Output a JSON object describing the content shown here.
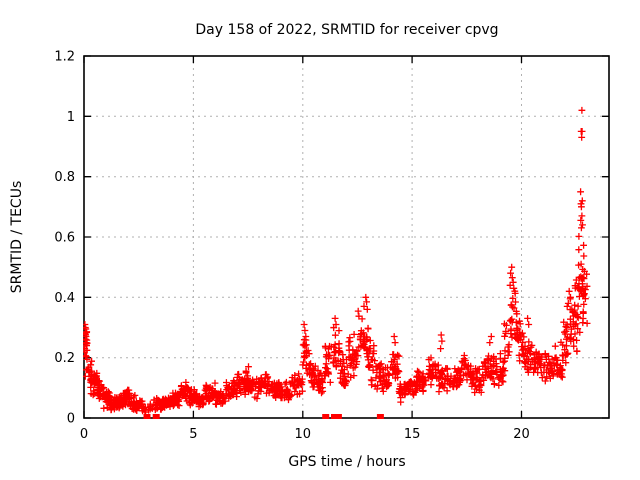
{
  "chart_data": {
    "type": "scatter",
    "title": "Day 158 of 2022, SRMTID for receiver cpvg",
    "xlabel": "GPS time / hours",
    "ylabel": "SRMTID / TECUs",
    "series_name": "SRMTID",
    "marker": "plus-cross",
    "marker_color": "#ff0000",
    "grid": true,
    "grid_color": "#b0b0b0",
    "border_color": "#000000",
    "xlim": [
      0,
      24
    ],
    "ylim": [
      0,
      1.2
    ],
    "xticks": [
      0,
      5,
      10,
      15,
      20
    ],
    "xtick_labels": [
      "0",
      "5",
      "10",
      "15",
      "20"
    ],
    "yticks": [
      0,
      0.2,
      0.4,
      0.6,
      0.8,
      1,
      1.2
    ],
    "ytick_labels": [
      "0",
      "0.2",
      "0.4",
      "0.6",
      "0.8",
      "1",
      "1.2"
    ],
    "envelope_bins": [
      [
        0.0,
        0.15,
        0.2,
        0.31,
        12
      ],
      [
        0.05,
        0.35,
        0.11,
        0.22,
        16
      ],
      [
        0.3,
        0.6,
        0.07,
        0.17,
        24
      ],
      [
        0.6,
        0.9,
        0.05,
        0.13,
        26
      ],
      [
        0.9,
        1.2,
        0.03,
        0.1,
        28
      ],
      [
        1.2,
        1.5,
        0.02,
        0.08,
        28
      ],
      [
        1.5,
        1.8,
        0.03,
        0.09,
        28
      ],
      [
        1.8,
        2.1,
        0.04,
        0.11,
        26
      ],
      [
        2.1,
        2.4,
        0.02,
        0.08,
        26
      ],
      [
        2.4,
        2.7,
        0.02,
        0.06,
        16
      ],
      [
        2.7,
        3.15,
        0.01,
        0.05,
        12
      ],
      [
        3.15,
        3.6,
        0.02,
        0.07,
        28
      ],
      [
        3.6,
        4.0,
        0.03,
        0.08,
        30
      ],
      [
        4.0,
        4.4,
        0.03,
        0.09,
        30
      ],
      [
        4.4,
        4.8,
        0.05,
        0.13,
        30
      ],
      [
        4.8,
        5.1,
        0.04,
        0.1,
        24
      ],
      [
        5.1,
        5.5,
        0.03,
        0.09,
        28
      ],
      [
        5.5,
        6.0,
        0.05,
        0.12,
        32
      ],
      [
        6.0,
        6.5,
        0.04,
        0.1,
        32
      ],
      [
        6.5,
        7.0,
        0.06,
        0.13,
        32
      ],
      [
        7.0,
        7.5,
        0.07,
        0.16,
        32
      ],
      [
        7.5,
        8.0,
        0.06,
        0.14,
        32
      ],
      [
        8.0,
        8.5,
        0.07,
        0.15,
        32
      ],
      [
        8.5,
        9.0,
        0.06,
        0.13,
        32
      ],
      [
        9.0,
        9.5,
        0.05,
        0.12,
        32
      ],
      [
        9.5,
        10.0,
        0.07,
        0.16,
        32
      ],
      [
        10.0,
        10.3,
        0.12,
        0.28,
        20
      ],
      [
        10.3,
        10.7,
        0.08,
        0.2,
        26
      ],
      [
        10.7,
        11.0,
        0.06,
        0.16,
        20
      ],
      [
        11.0,
        11.35,
        0.1,
        0.26,
        20
      ],
      [
        11.35,
        11.7,
        0.12,
        0.32,
        22
      ],
      [
        11.7,
        12.1,
        0.08,
        0.22,
        26
      ],
      [
        12.1,
        12.5,
        0.12,
        0.3,
        28
      ],
      [
        12.5,
        13.0,
        0.15,
        0.38,
        32
      ],
      [
        13.0,
        13.3,
        0.1,
        0.28,
        20
      ],
      [
        13.3,
        13.6,
        0.08,
        0.2,
        18
      ],
      [
        13.6,
        14.0,
        0.08,
        0.18,
        24
      ],
      [
        14.0,
        14.4,
        0.1,
        0.22,
        26
      ],
      [
        14.4,
        14.8,
        0.05,
        0.14,
        26
      ],
      [
        14.8,
        15.2,
        0.06,
        0.14,
        26
      ],
      [
        15.2,
        15.7,
        0.08,
        0.17,
        30
      ],
      [
        15.7,
        16.2,
        0.1,
        0.2,
        30
      ],
      [
        16.2,
        16.7,
        0.08,
        0.18,
        30
      ],
      [
        16.7,
        17.2,
        0.08,
        0.17,
        30
      ],
      [
        17.2,
        17.7,
        0.1,
        0.22,
        30
      ],
      [
        17.7,
        18.2,
        0.08,
        0.18,
        30
      ],
      [
        18.2,
        18.7,
        0.1,
        0.22,
        30
      ],
      [
        18.7,
        19.2,
        0.1,
        0.22,
        30
      ],
      [
        19.2,
        19.45,
        0.14,
        0.32,
        14
      ],
      [
        19.45,
        19.8,
        0.2,
        0.48,
        24
      ],
      [
        19.8,
        20.1,
        0.15,
        0.36,
        20
      ],
      [
        20.1,
        20.5,
        0.13,
        0.28,
        26
      ],
      [
        20.5,
        21.0,
        0.12,
        0.24,
        30
      ],
      [
        21.0,
        21.5,
        0.1,
        0.22,
        30
      ],
      [
        21.5,
        21.9,
        0.12,
        0.26,
        26
      ],
      [
        21.9,
        22.3,
        0.14,
        0.4,
        28
      ],
      [
        22.3,
        22.6,
        0.18,
        0.48,
        24
      ],
      [
        22.55,
        22.9,
        0.25,
        0.62,
        30
      ],
      [
        22.8,
        23.0,
        0.3,
        0.55,
        12
      ]
    ],
    "outlier_points": [
      [
        0.04,
        0.31
      ],
      [
        0.06,
        0.3
      ],
      [
        0.08,
        0.295
      ],
      [
        0.05,
        0.28
      ],
      [
        0.09,
        0.27
      ],
      [
        0.07,
        0.26
      ],
      [
        0.1,
        0.25
      ],
      [
        0.12,
        0.24
      ],
      [
        0.03,
        0.23
      ],
      [
        7.52,
        0.17
      ],
      [
        10.06,
        0.31
      ],
      [
        10.1,
        0.29
      ],
      [
        10.14,
        0.27
      ],
      [
        11.48,
        0.33
      ],
      [
        11.52,
        0.31
      ],
      [
        12.88,
        0.4
      ],
      [
        12.92,
        0.385
      ],
      [
        12.8,
        0.37
      ],
      [
        12.95,
        0.36
      ],
      [
        14.18,
        0.27
      ],
      [
        14.22,
        0.25
      ],
      [
        16.33,
        0.275
      ],
      [
        16.36,
        0.255
      ],
      [
        16.3,
        0.23
      ],
      [
        18.62,
        0.27
      ],
      [
        18.55,
        0.25
      ],
      [
        19.55,
        0.5
      ],
      [
        19.5,
        0.48
      ],
      [
        19.58,
        0.465
      ],
      [
        19.62,
        0.45
      ],
      [
        19.48,
        0.44
      ],
      [
        19.65,
        0.43
      ],
      [
        20.28,
        0.33
      ],
      [
        20.33,
        0.31
      ],
      [
        22.18,
        0.42
      ],
      [
        22.24,
        0.4
      ],
      [
        22.14,
        0.38
      ],
      [
        22.76,
        1.02
      ],
      [
        22.73,
        0.95
      ],
      [
        22.77,
        0.95
      ],
      [
        22.75,
        0.93
      ],
      [
        22.7,
        0.75
      ],
      [
        22.78,
        0.72
      ],
      [
        22.72,
        0.71
      ],
      [
        22.74,
        0.7
      ],
      [
        22.76,
        0.67
      ],
      [
        22.71,
        0.655
      ],
      [
        22.79,
        0.64
      ],
      [
        22.74,
        0.63
      ]
    ],
    "zero_gap_squares_x": [
      2.88,
      3.3,
      11.05,
      11.45,
      11.63,
      13.55
    ]
  }
}
